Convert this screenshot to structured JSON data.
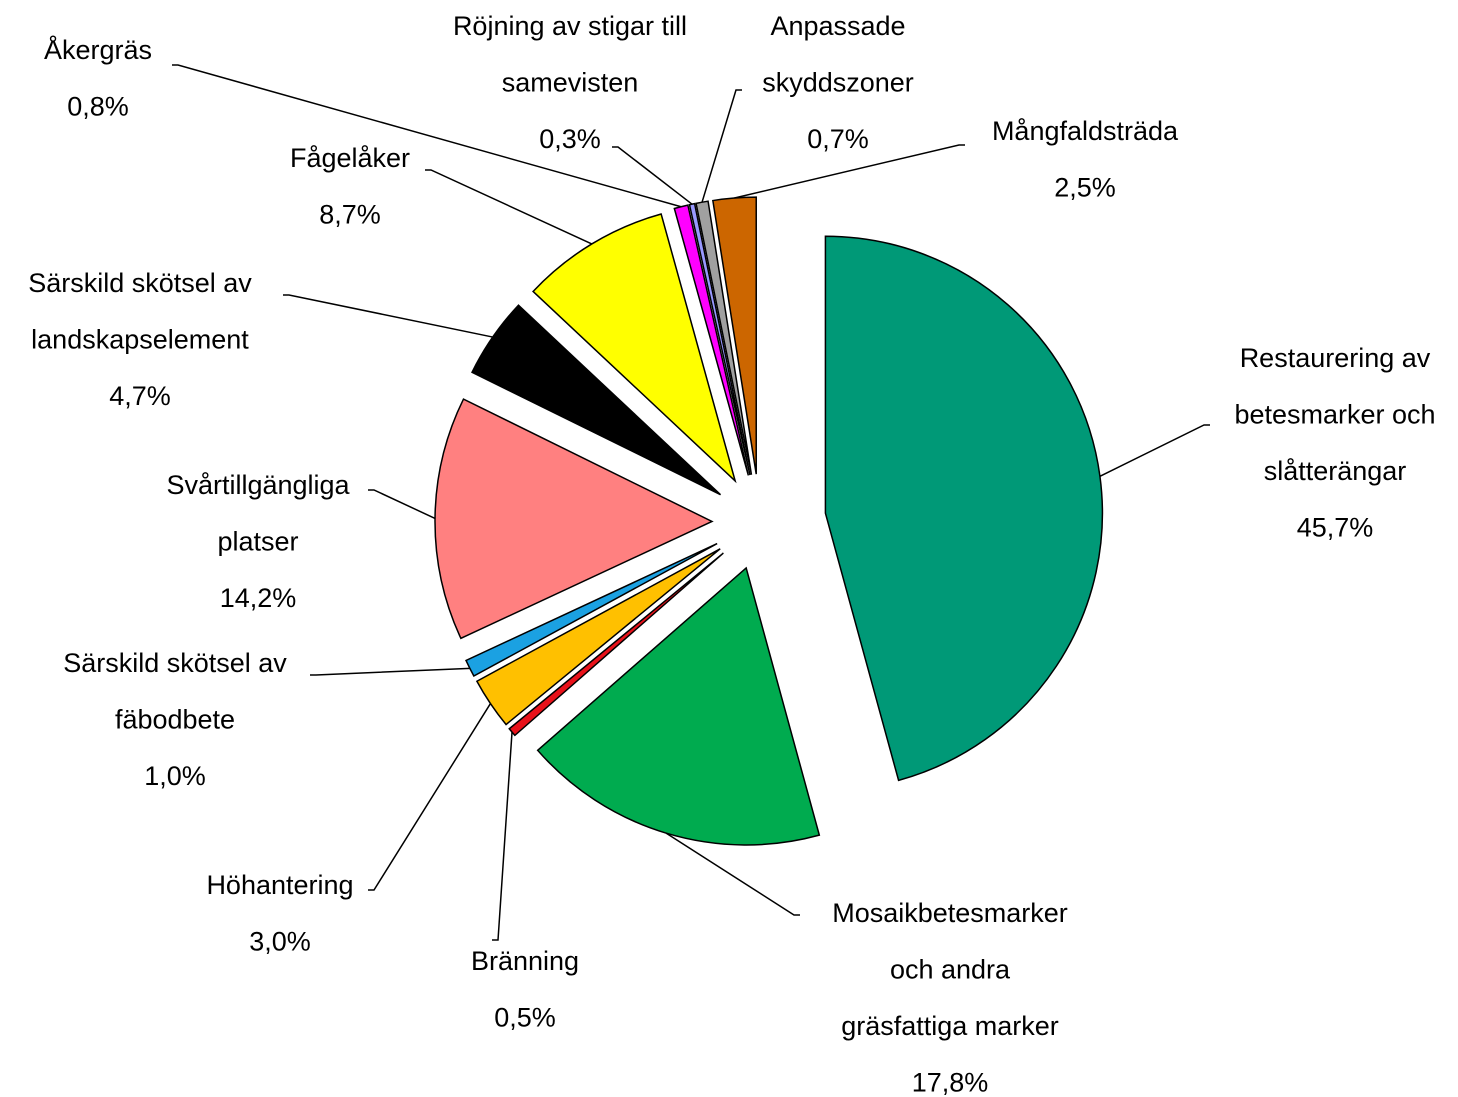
{
  "chart_data": {
    "type": "pie",
    "categories": [
      [
        "Restaurering av",
        "betesmarker och",
        "slåtterängar"
      ],
      [
        "Mosaikbetesmarker",
        "och andra",
        "gräsfattiga marker"
      ],
      [
        "Bränning"
      ],
      [
        "Höhantering"
      ],
      [
        "Särskild skötsel av",
        "fäbodbete"
      ],
      [
        "Svårtillgängliga",
        "platser"
      ],
      [
        "Särskild skötsel av",
        "landskapselement"
      ],
      [
        "Fågelåker"
      ],
      [
        "Åkergräs"
      ],
      [
        "Röjning av stigar till",
        "samevisten"
      ],
      [
        "Anpassade",
        "skyddszoner"
      ],
      [
        "Mångfaldsträda"
      ]
    ],
    "values": [
      45.7,
      17.8,
      0.5,
      3.0,
      1.0,
      14.2,
      4.7,
      8.7,
      0.8,
      0.3,
      0.7,
      2.5
    ],
    "value_labels": [
      "45,7%",
      "17,8%",
      "0,5%",
      "3,0%",
      "1,0%",
      "14,2%",
      "4,7%",
      "8,7%",
      "0,8%",
      "0,3%",
      "0,7%",
      "2,5%"
    ],
    "colors": [
      "#009977",
      "#00ab4f",
      "#e8121a",
      "#ffc000",
      "#1ba1e2",
      "#ff8080",
      "#000000",
      "#ffff00",
      "#ff00ff",
      "#9999ff",
      "#a0a0a0",
      "#cc6600"
    ]
  }
}
